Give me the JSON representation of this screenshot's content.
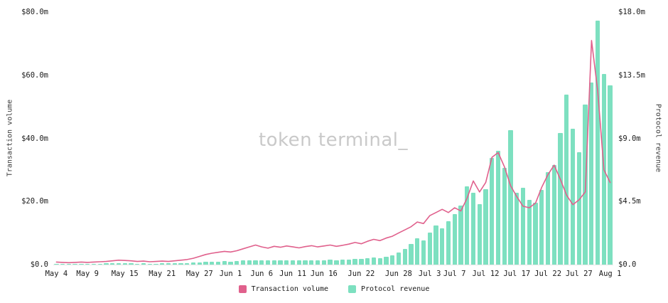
{
  "watermark": "token terminal_",
  "axes": {
    "left": {
      "title": "Transaction volume",
      "ticks": [
        "$0.0",
        "$20.0m",
        "$40.0m",
        "$60.0m",
        "$80.0m"
      ],
      "max": 80
    },
    "right": {
      "title": "Protocol revenue",
      "ticks": [
        "$0.0",
        "$4.5m",
        "$9.0m",
        "$13.5m",
        "$18.0m"
      ],
      "max": 18
    }
  },
  "legend": {
    "items": [
      {
        "label": "Transaction volume",
        "color": "#e0608c"
      },
      {
        "label": "Protocol revenue",
        "color": "#7de0c0"
      }
    ]
  },
  "chart_data": {
    "type": "bar+line",
    "title": "",
    "left_ylabel": "Transaction volume",
    "right_ylabel": "Protocol revenue",
    "left_ylim": [
      0,
      80
    ],
    "right_ylim": [
      0,
      18
    ],
    "units": "USD millions",
    "grid": false,
    "legend_position": "bottom-center",
    "colors": {
      "line": "#e0608c",
      "bar": "#7de0c0"
    },
    "x_tick_labels": [
      "May 4",
      "May 9",
      "May 15",
      "May 21",
      "May 27",
      "Jun 1",
      "Jun 6",
      "Jun 11",
      "Jun 16",
      "Jun 22",
      "Jun 28",
      "Jul 3",
      "Jul 7",
      "Jul 12",
      "Jul 17",
      "Jul 22",
      "Jul 27",
      "Aug 1"
    ],
    "x_tick_indices": [
      0,
      5,
      11,
      17,
      23,
      28,
      33,
      38,
      43,
      49,
      55,
      60,
      64,
      69,
      74,
      79,
      84,
      89
    ],
    "x": [
      "May 4",
      "May 5",
      "May 6",
      "May 7",
      "May 8",
      "May 9",
      "May 10",
      "May 11",
      "May 12",
      "May 13",
      "May 14",
      "May 15",
      "May 16",
      "May 17",
      "May 18",
      "May 19",
      "May 20",
      "May 21",
      "May 22",
      "May 23",
      "May 24",
      "May 25",
      "May 26",
      "May 27",
      "May 28",
      "May 29",
      "May 30",
      "May 31",
      "Jun 1",
      "Jun 2",
      "Jun 3",
      "Jun 4",
      "Jun 5",
      "Jun 6",
      "Jun 7",
      "Jun 8",
      "Jun 9",
      "Jun 10",
      "Jun 11",
      "Jun 12",
      "Jun 13",
      "Jun 14",
      "Jun 15",
      "Jun 16",
      "Jun 17",
      "Jun 18",
      "Jun 19",
      "Jun 20",
      "Jun 21",
      "Jun 22",
      "Jun 23",
      "Jun 24",
      "Jun 25",
      "Jun 26",
      "Jun 27",
      "Jun 28",
      "Jun 29",
      "Jun 30",
      "Jul 1",
      "Jul 2",
      "Jul 3",
      "Jul 4",
      "Jul 5",
      "Jul 6",
      "Jul 7",
      "Jul 8",
      "Jul 9",
      "Jul 10",
      "Jul 11",
      "Jul 12",
      "Jul 13",
      "Jul 14",
      "Jul 15",
      "Jul 16",
      "Jul 17",
      "Jul 18",
      "Jul 19",
      "Jul 20",
      "Jul 21",
      "Jul 22",
      "Jul 23",
      "Jul 24",
      "Jul 25",
      "Jul 26",
      "Jul 27",
      "Jul 28",
      "Jul 29",
      "Jul 30",
      "Jul 31",
      "Aug 1"
    ],
    "series": [
      {
        "name": "Transaction volume",
        "type": "line",
        "axis": "left",
        "values": [
          0.8,
          0.7,
          0.6,
          0.7,
          0.8,
          0.7,
          0.8,
          0.9,
          1.0,
          1.2,
          1.4,
          1.3,
          1.2,
          1.0,
          1.1,
          0.9,
          1.0,
          1.1,
          1.0,
          1.2,
          1.4,
          1.6,
          2.0,
          2.6,
          3.2,
          3.6,
          3.9,
          4.2,
          4.0,
          4.4,
          5.0,
          5.6,
          6.2,
          5.6,
          5.2,
          5.8,
          5.5,
          5.9,
          5.6,
          5.3,
          5.7,
          6.0,
          5.6,
          5.9,
          6.2,
          5.8,
          6.1,
          6.5,
          7.0,
          6.6,
          7.4,
          8.0,
          7.6,
          8.4,
          9.0,
          10.0,
          11.0,
          12.0,
          13.5,
          13.0,
          15.5,
          16.5,
          17.5,
          16.5,
          18.0,
          17.0,
          21.0,
          26.5,
          23.0,
          26.0,
          34.0,
          35.5,
          31.0,
          25.0,
          21.5,
          18.5,
          18.0,
          19.5,
          24.5,
          28.5,
          31.5,
          27.0,
          22.0,
          19.0,
          20.5,
          23.0,
          71.0,
          55.0,
          30.0,
          26.0
        ]
      },
      {
        "name": "Protocol revenue",
        "type": "bar",
        "axis": "right",
        "values": [
          0.06,
          0.05,
          0.05,
          0.06,
          0.06,
          0.05,
          0.06,
          0.07,
          0.08,
          0.09,
          0.1,
          0.09,
          0.08,
          0.07,
          0.08,
          0.07,
          0.07,
          0.08,
          0.08,
          0.09,
          0.1,
          0.12,
          0.14,
          0.16,
          0.18,
          0.2,
          0.22,
          0.24,
          0.22,
          0.25,
          0.28,
          0.3,
          0.33,
          0.3,
          0.28,
          0.3,
          0.29,
          0.31,
          0.3,
          0.28,
          0.3,
          0.32,
          0.3,
          0.32,
          0.34,
          0.32,
          0.35,
          0.38,
          0.42,
          0.4,
          0.45,
          0.5,
          0.48,
          0.55,
          0.65,
          0.85,
          1.1,
          1.45,
          1.9,
          1.75,
          2.3,
          2.8,
          2.6,
          3.1,
          3.6,
          4.2,
          5.6,
          5.1,
          4.3,
          5.4,
          7.6,
          8.1,
          6.9,
          9.6,
          5.1,
          5.5,
          4.6,
          4.4,
          5.3,
          6.6,
          7.1,
          9.4,
          12.1,
          9.7,
          8.0,
          11.4,
          13.0,
          17.4,
          13.6,
          12.8
        ]
      }
    ]
  }
}
